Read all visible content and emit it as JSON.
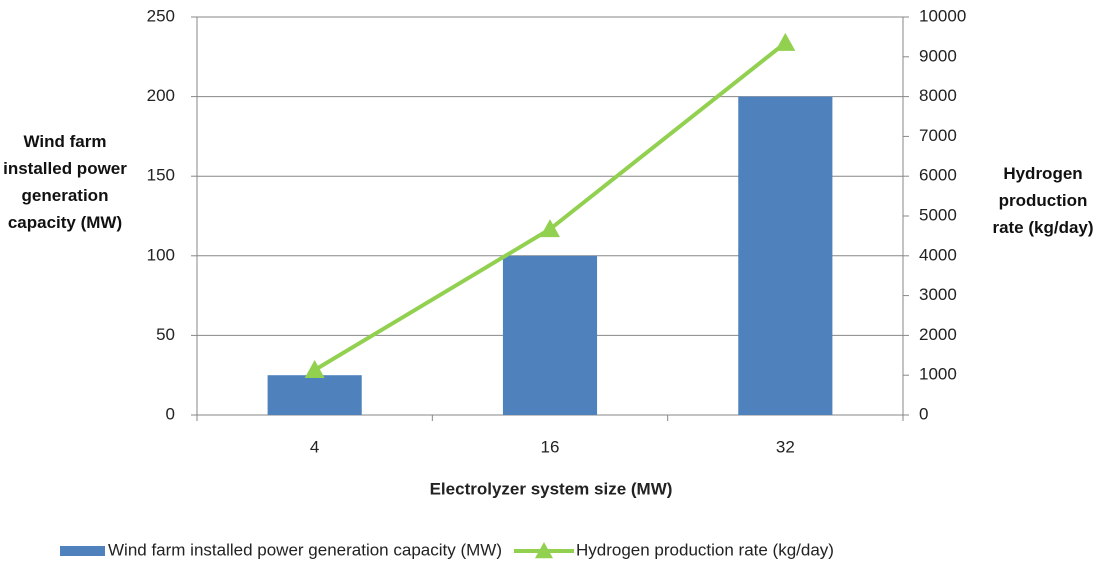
{
  "chart_data": {
    "type": "bar",
    "categories": [
      "4",
      "16",
      "32"
    ],
    "series": [
      {
        "name": "Wind farm installed power generation capacity (MW)",
        "type": "bar",
        "color": "#4f81bd",
        "values": [
          25,
          100,
          200
        ]
      },
      {
        "name": "Hydrogen production rate (kg/day)",
        "type": "line",
        "color": "#92d050",
        "axis": "y2",
        "values": [
          1130,
          4670,
          9350
        ]
      }
    ],
    "xlabel": "Electrolyzer system size (MW)",
    "ylabel": "Wind farm installed power generation capacity (MW)",
    "y2label": "Hydrogen production rate (kg/day)",
    "ylim": [
      0,
      250
    ],
    "yticks": [
      0,
      50,
      100,
      150,
      200,
      250
    ],
    "y2lim": [
      0,
      10000
    ],
    "y2ticks": [
      0,
      1000,
      2000,
      3000,
      4000,
      5000,
      6000,
      7000,
      8000,
      9000,
      10000
    ],
    "grid": true,
    "legend": "bottom"
  }
}
